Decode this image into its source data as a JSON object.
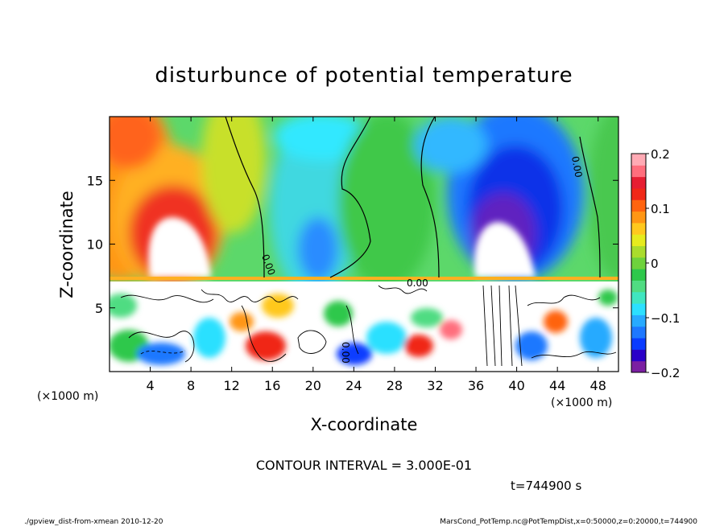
{
  "chart_data": {
    "type": "heatmap",
    "title": "disturbunce of potential temperature",
    "xlabel": "X-coordinate",
    "ylabel": "Z-coordinate",
    "x_unit_left": "(×1000 m)",
    "x_unit_right": "(×1000 m)",
    "xlim": [
      0,
      50
    ],
    "ylim": [
      0,
      20
    ],
    "x_ticks": [
      4,
      8,
      12,
      16,
      20,
      24,
      28,
      32,
      36,
      40,
      44,
      48
    ],
    "y_ticks": [
      5,
      10,
      15
    ],
    "colorbar": {
      "range": [
        -0.2,
        0.2
      ],
      "tick_labels": [
        "0.2",
        "0.1",
        "0",
        "−0.1",
        "−0.2"
      ],
      "tick_values": [
        0.2,
        0.1,
        0,
        -0.1,
        -0.2
      ],
      "colors": [
        "#7b1fa2",
        "#2a00c8",
        "#0a3cff",
        "#1e78ff",
        "#28aaff",
        "#2ce0ff",
        "#40e6c0",
        "#50dc82",
        "#2ec84b",
        "#6ed23c",
        "#aadc2d",
        "#e6eb1e",
        "#ffc81e",
        "#ff9614",
        "#ff640f",
        "#f02818",
        "#e61e32",
        "#ff6e7d",
        "#ffaab4"
      ]
    },
    "contour_label": "0.00",
    "contour_interval_text": "CONTOUR INTERVAL = 3.000E-01",
    "time_label": "t=744900 s"
  },
  "footer": {
    "left": "./gpview_dist-from-xmean  2010-12-20",
    "right": "MarsCond_PotTemp.nc@PotTempDist,x=0:50000,z=0:20000,t=744900"
  }
}
